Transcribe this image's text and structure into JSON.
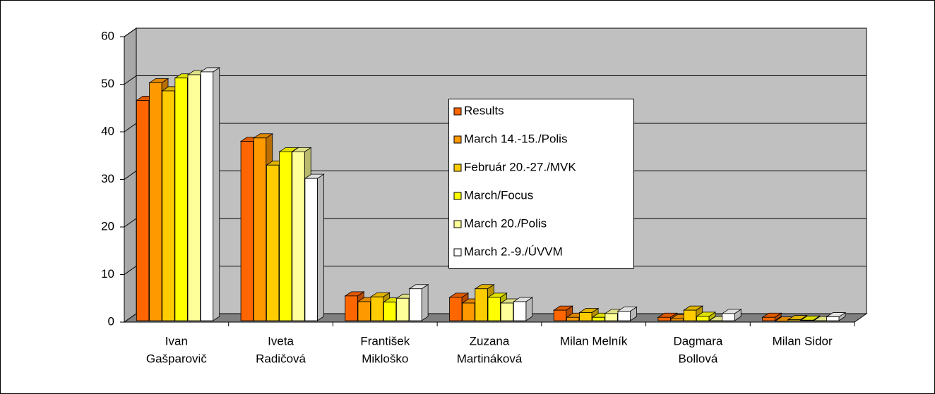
{
  "chart_data": {
    "type": "bar3d",
    "categories": [
      [
        "Ivan",
        "Gašparovič"
      ],
      [
        "Iveta",
        "Radičová"
      ],
      [
        "František",
        "Mikloško"
      ],
      [
        "Zuzana",
        "Martináková"
      ],
      [
        "Milan Melník"
      ],
      [
        "Dagmara",
        "Bollová"
      ],
      [
        "Milan Sidor"
      ]
    ],
    "series": [
      {
        "name": "Results",
        "color": "#ff6600",
        "values": [
          46.6,
          38.0,
          5.5,
          5.2,
          2.5,
          1.0,
          1.0
        ]
      },
      {
        "name": "March 14.-15./Polis",
        "color": "#ff9900",
        "values": [
          50.3,
          38.7,
          4.3,
          4.0,
          1.0,
          0.7,
          0.2
        ]
      },
      {
        "name": "Február 20.-27./MVK",
        "color": "#ffcc00",
        "values": [
          48.6,
          33.0,
          5.3,
          7.0,
          2.0,
          2.5,
          0.5
        ]
      },
      {
        "name": "March/Focus",
        "color": "#ffff00",
        "values": [
          51.3,
          35.8,
          4.2,
          5.2,
          1.0,
          1.2,
          0.4
        ]
      },
      {
        "name": "March 20./Polis",
        "color": "#ffff99",
        "values": [
          52.0,
          35.8,
          5.0,
          4.0,
          1.8,
          0.3,
          0.3
        ]
      },
      {
        "name": "March 2.-9./ÚVVM",
        "color": "#ffffff",
        "values": [
          52.6,
          30.2,
          7.0,
          4.3,
          2.3,
          1.8,
          1.1
        ]
      }
    ],
    "ylim": [
      0,
      60
    ],
    "yticks": [
      0,
      10,
      20,
      30,
      40,
      50,
      60
    ],
    "grid": true,
    "legend": "center"
  }
}
